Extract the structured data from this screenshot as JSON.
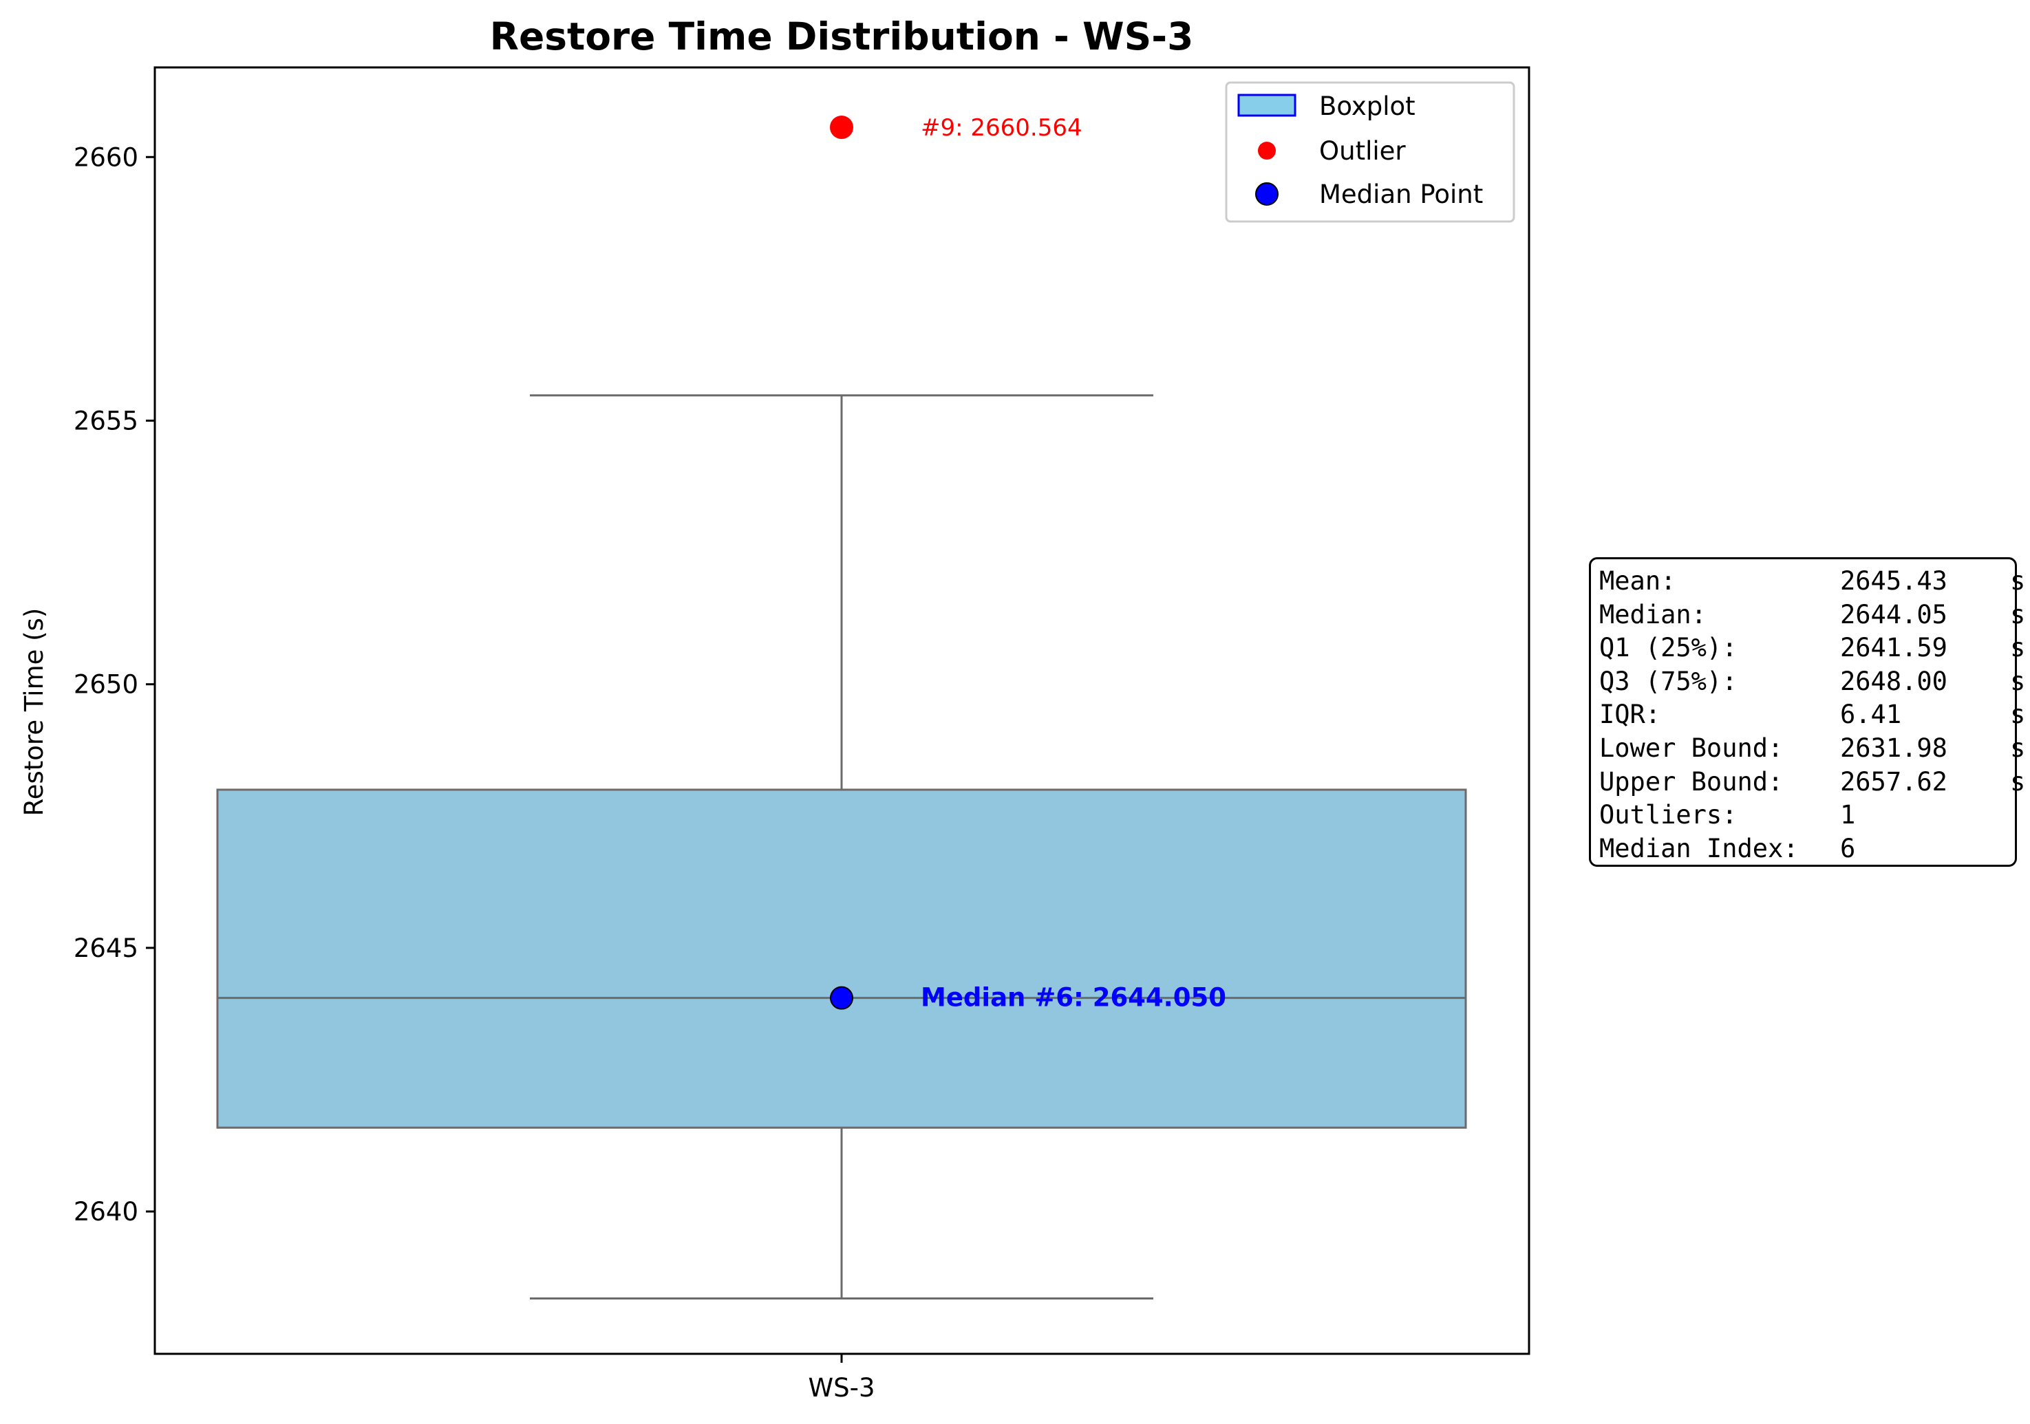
{
  "chart_data": {
    "type": "boxplot",
    "title": "Restore Time Distribution - WS-3",
    "xlabel": "",
    "ylabel": "Restore Time (s)",
    "categories": [
      "WS-3"
    ],
    "ylim": [
      2637.3,
      2661.7
    ],
    "yticks": [
      2640,
      2645,
      2650,
      2655,
      2660
    ],
    "box": {
      "whisker_low": 2638.35,
      "q1": 2641.59,
      "median": 2644.05,
      "q3": 2648.0,
      "whisker_high": 2655.48
    },
    "outliers": [
      {
        "index": 9,
        "value": 2660.564,
        "label": "#9: 2660.564"
      }
    ],
    "median_point": {
      "index": 6,
      "value": 2644.05,
      "label": "Median #6: 2644.050"
    },
    "legend": {
      "placement": "top-right",
      "entries": [
        "Boxplot",
        "Outlier",
        "Median Point"
      ]
    },
    "colors": {
      "box_fill": "#92c6de",
      "box_edge": "#6b6b6b",
      "outlier": "#ff0000",
      "median_point": "#0000ff",
      "legend_box_fill": "#87ceeb",
      "legend_box_edge": "#0000ff"
    },
    "grid": false
  },
  "stats": {
    "rows": [
      {
        "label": "Mean:",
        "value": "2645.43",
        "unit": "s"
      },
      {
        "label": "Median:",
        "value": "2644.05",
        "unit": "s"
      },
      {
        "label": "Q1 (25%):",
        "value": "2641.59",
        "unit": "s"
      },
      {
        "label": "Q3 (75%):",
        "value": "2648.00",
        "unit": "s"
      },
      {
        "label": "IQR:",
        "value": "6.41",
        "unit": "s"
      },
      {
        "label": "Lower Bound:",
        "value": "2631.98",
        "unit": "s"
      },
      {
        "label": "Upper Bound:",
        "value": "2657.62",
        "unit": "s"
      },
      {
        "label": "Outliers:",
        "value": "1",
        "unit": ""
      },
      {
        "label": "Median Index:",
        "value": "6",
        "unit": ""
      }
    ]
  }
}
